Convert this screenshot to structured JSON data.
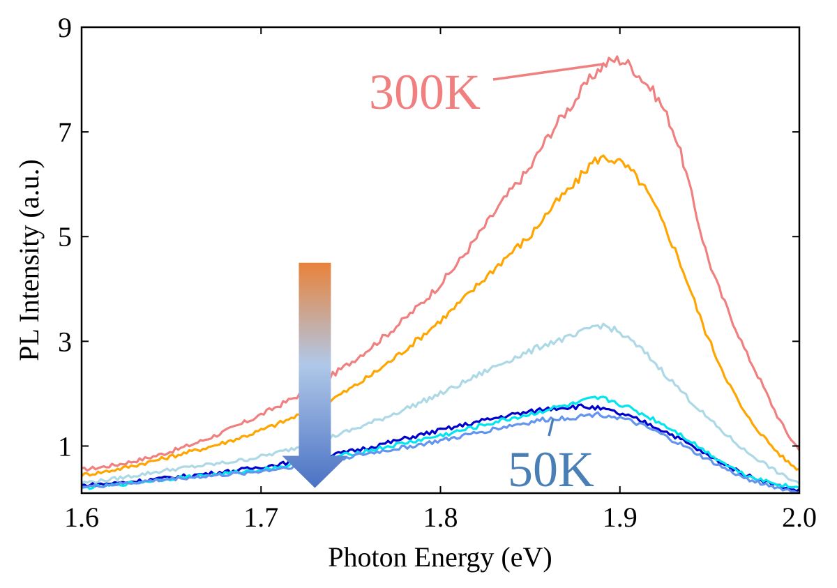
{
  "chart_data": {
    "type": "line",
    "xlabel": "Photon Energy (eV)",
    "ylabel": "PL Intensity (a.u.)",
    "xlim": [
      1.6,
      2.0
    ],
    "ylim": [
      0.1,
      9
    ],
    "xticks": [
      1.6,
      1.7,
      1.8,
      1.9,
      2.0
    ],
    "xtick_labels": [
      "1.6",
      "1.7",
      "1.8",
      "1.9",
      "2.0"
    ],
    "yticks": [
      1,
      3,
      5,
      7,
      9
    ],
    "ytick_labels": [
      "1",
      "3",
      "5",
      "7",
      "9"
    ],
    "grid": false,
    "legend": "none",
    "series": [
      {
        "color": "#f08080",
        "points": [
          [
            1.6,
            0.55
          ],
          [
            1.65,
            0.9
          ],
          [
            1.7,
            1.6
          ],
          [
            1.75,
            2.6
          ],
          [
            1.8,
            4.1
          ],
          [
            1.85,
            6.3
          ],
          [
            1.875,
            7.6
          ],
          [
            1.895,
            8.35
          ],
          [
            1.91,
            8.1
          ],
          [
            1.93,
            7.0
          ],
          [
            1.95,
            4.5
          ],
          [
            1.97,
            2.8
          ],
          [
            2.0,
            0.95
          ]
        ]
      },
      {
        "color": "#ffa500",
        "points": [
          [
            1.6,
            0.45
          ],
          [
            1.65,
            0.8
          ],
          [
            1.7,
            1.3
          ],
          [
            1.75,
            2.1
          ],
          [
            1.8,
            3.4
          ],
          [
            1.85,
            5.0
          ],
          [
            1.875,
            6.0
          ],
          [
            1.89,
            6.5
          ],
          [
            1.91,
            6.1
          ],
          [
            1.93,
            4.8
          ],
          [
            1.95,
            3.0
          ],
          [
            1.97,
            1.6
          ],
          [
            2.0,
            0.55
          ]
        ]
      },
      {
        "color": "#add8e6",
        "points": [
          [
            1.6,
            0.3
          ],
          [
            1.65,
            0.55
          ],
          [
            1.7,
            0.8
          ],
          [
            1.75,
            1.3
          ],
          [
            1.8,
            2.0
          ],
          [
            1.85,
            2.8
          ],
          [
            1.875,
            3.1
          ],
          [
            1.89,
            3.3
          ],
          [
            1.91,
            2.9
          ],
          [
            1.93,
            2.2
          ],
          [
            1.95,
            1.5
          ],
          [
            1.97,
            0.9
          ],
          [
            2.0,
            0.3
          ]
        ]
      },
      {
        "color": "#0000cd",
        "points": [
          [
            1.6,
            0.25
          ],
          [
            1.65,
            0.4
          ],
          [
            1.7,
            0.6
          ],
          [
            1.75,
            0.9
          ],
          [
            1.8,
            1.3
          ],
          [
            1.85,
            1.65
          ],
          [
            1.875,
            1.75
          ],
          [
            1.89,
            1.7
          ],
          [
            1.91,
            1.5
          ],
          [
            1.93,
            1.2
          ],
          [
            1.95,
            0.8
          ],
          [
            1.97,
            0.45
          ],
          [
            2.0,
            0.15
          ]
        ]
      },
      {
        "color": "#00e5ee",
        "points": [
          [
            1.6,
            0.2
          ],
          [
            1.65,
            0.38
          ],
          [
            1.7,
            0.55
          ],
          [
            1.75,
            0.85
          ],
          [
            1.8,
            1.2
          ],
          [
            1.85,
            1.6
          ],
          [
            1.875,
            1.8
          ],
          [
            1.89,
            1.9
          ],
          [
            1.91,
            1.65
          ],
          [
            1.93,
            1.3
          ],
          [
            1.95,
            0.85
          ],
          [
            1.97,
            0.45
          ],
          [
            2.0,
            0.2
          ]
        ]
      },
      {
        "color": "#6495ed",
        "points": [
          [
            1.6,
            0.22
          ],
          [
            1.65,
            0.37
          ],
          [
            1.7,
            0.52
          ],
          [
            1.75,
            0.8
          ],
          [
            1.8,
            1.1
          ],
          [
            1.85,
            1.45
          ],
          [
            1.875,
            1.55
          ],
          [
            1.89,
            1.6
          ],
          [
            1.91,
            1.42
          ],
          [
            1.93,
            1.1
          ],
          [
            1.95,
            0.72
          ],
          [
            1.97,
            0.38
          ],
          [
            2.0,
            0.12
          ]
        ]
      }
    ],
    "annotations": [
      {
        "text": "300K",
        "color": "#f08080",
        "points_to": [
          1.895,
          8.35
        ]
      },
      {
        "text": "50K",
        "color": "#4a7fb5",
        "points_to": [
          1.865,
          1.55
        ]
      }
    ],
    "arrow": {
      "from_color": "#e8823a",
      "mid_color": "#b0c8e8",
      "to_color": "#4a72c4",
      "x": 1.73,
      "y_from": 4.5,
      "y_to": 0.2
    }
  }
}
